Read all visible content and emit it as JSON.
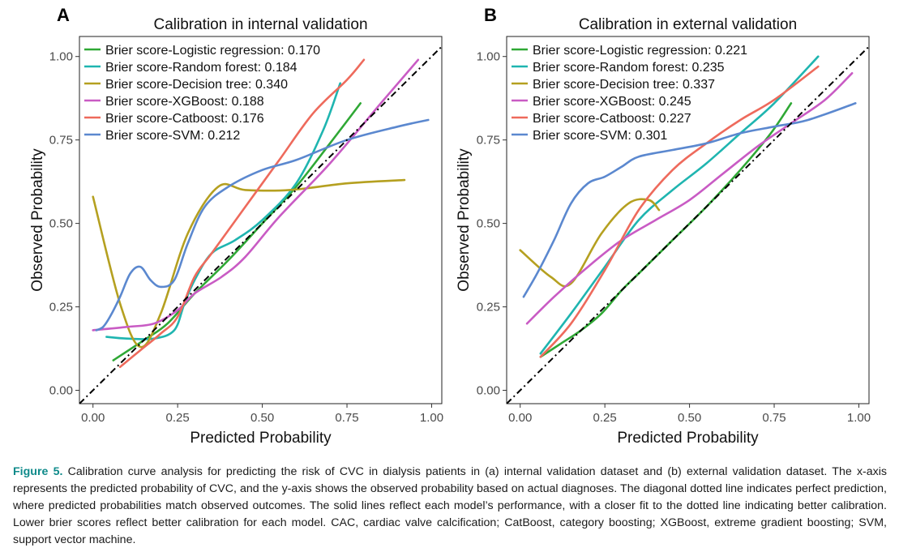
{
  "caption": {
    "label": "Figure 5.",
    "text": "Calibration curve analysis for predicting the risk of CVC in dialysis patients in (a) internal validation dataset and (b) external validation dataset. The x-axis represents the predicted probability of CVC, and the y-axis shows the observed probability based on actual diagnoses. The diagonal dotted line indicates perfect prediction, where predicted probabilities match observed outcomes. The solid lines reflect each model’s performance, with a closer fit to the dotted line indicating better calibration. Lower brier scores reflect better calibration for each model. CAC, cardiac valve calcification; CatBoost, category boosting; XGBoost, extreme gradient boosting; SVM, support vector machine."
  },
  "chart_data": [
    {
      "panel_label": "A",
      "type": "line",
      "title": "Calibration in internal validation",
      "xlabel": "Predicted Probability",
      "ylabel": "Observed Probability",
      "xlim": [
        -0.04,
        1.03
      ],
      "ylim": [
        -0.04,
        1.06
      ],
      "xticks": [
        "0.00",
        "0.25",
        "0.50",
        "0.75",
        "1.00"
      ],
      "yticks": [
        "0.00",
        "0.25",
        "0.50",
        "0.75",
        "1.00"
      ],
      "legend_position": "top-left",
      "reference_line": "diagonal dash-dot",
      "grid": false,
      "series": [
        {
          "name": "Brier score-Logistic regression: 0.170",
          "color": "#2fa835",
          "x": [
            0.06,
            0.15,
            0.22,
            0.3,
            0.4,
            0.5,
            0.6,
            0.7,
            0.79
          ],
          "y": [
            0.09,
            0.15,
            0.2,
            0.29,
            0.39,
            0.5,
            0.61,
            0.74,
            0.86
          ]
        },
        {
          "name": "Brier score-Random forest: 0.184",
          "color": "#1fb5b0",
          "x": [
            0.04,
            0.1,
            0.18,
            0.24,
            0.27,
            0.3,
            0.35,
            0.42,
            0.5,
            0.6,
            0.68,
            0.73
          ],
          "y": [
            0.16,
            0.155,
            0.155,
            0.18,
            0.26,
            0.33,
            0.41,
            0.45,
            0.51,
            0.62,
            0.78,
            0.92
          ]
        },
        {
          "name": "Brier score-Decision tree: 0.340",
          "color": "#b5a020",
          "x": [
            0.0,
            0.08,
            0.14,
            0.2,
            0.28,
            0.37,
            0.45,
            0.58,
            0.75,
            0.92
          ],
          "y": [
            0.58,
            0.26,
            0.13,
            0.23,
            0.47,
            0.61,
            0.6,
            0.6,
            0.62,
            0.63
          ]
        },
        {
          "name": "Brier score-XGBoost: 0.188",
          "color": "#c95bc4",
          "x": [
            0.0,
            0.1,
            0.18,
            0.25,
            0.3,
            0.38,
            0.45,
            0.55,
            0.7,
            0.85,
            0.96
          ],
          "y": [
            0.18,
            0.19,
            0.2,
            0.24,
            0.29,
            0.34,
            0.4,
            0.52,
            0.68,
            0.86,
            0.99
          ]
        },
        {
          "name": "Brier score-Catboost: 0.176",
          "color": "#ee6a5c",
          "x": [
            0.08,
            0.14,
            0.2,
            0.25,
            0.3,
            0.35,
            0.45,
            0.55,
            0.65,
            0.75,
            0.8
          ],
          "y": [
            0.07,
            0.12,
            0.17,
            0.22,
            0.34,
            0.41,
            0.55,
            0.69,
            0.83,
            0.93,
            0.99
          ]
        },
        {
          "name": "Brier score-SVM: 0.212",
          "color": "#5b88cf",
          "x": [
            0.01,
            0.03,
            0.05,
            0.08,
            0.11,
            0.14,
            0.17,
            0.2,
            0.24,
            0.28,
            0.33,
            0.4,
            0.5,
            0.6,
            0.75,
            0.9,
            0.99
          ],
          "y": [
            0.18,
            0.19,
            0.22,
            0.28,
            0.35,
            0.37,
            0.33,
            0.31,
            0.33,
            0.44,
            0.55,
            0.61,
            0.66,
            0.69,
            0.75,
            0.79,
            0.81
          ]
        }
      ]
    },
    {
      "panel_label": "B",
      "type": "line",
      "title": "Calibration in external validation",
      "xlabel": "Predicted Probability",
      "ylabel": "Observed Probability",
      "xlim": [
        -0.04,
        1.03
      ],
      "ylim": [
        -0.04,
        1.06
      ],
      "xticks": [
        "0.00",
        "0.25",
        "0.50",
        "0.75",
        "1.00"
      ],
      "yticks": [
        "0.00",
        "0.25",
        "0.50",
        "0.75",
        "1.00"
      ],
      "legend_position": "top-left",
      "reference_line": "diagonal dash-dot",
      "grid": false,
      "series": [
        {
          "name": "Brier score-Logistic regression: 0.221",
          "color": "#2fa835",
          "x": [
            0.06,
            0.12,
            0.18,
            0.24,
            0.3,
            0.36,
            0.45,
            0.55,
            0.65,
            0.74,
            0.8
          ],
          "y": [
            0.1,
            0.14,
            0.18,
            0.23,
            0.3,
            0.36,
            0.45,
            0.55,
            0.66,
            0.77,
            0.86
          ]
        },
        {
          "name": "Brier score-Random forest: 0.235",
          "color": "#1fb5b0",
          "x": [
            0.06,
            0.15,
            0.25,
            0.35,
            0.45,
            0.55,
            0.65,
            0.75,
            0.88
          ],
          "y": [
            0.11,
            0.23,
            0.37,
            0.51,
            0.6,
            0.68,
            0.77,
            0.86,
            1.0
          ]
        },
        {
          "name": "Brier score-Decision tree: 0.337",
          "color": "#b5a020",
          "x": [
            0.0,
            0.09,
            0.15,
            0.24,
            0.32,
            0.38,
            0.41
          ],
          "y": [
            0.42,
            0.34,
            0.32,
            0.47,
            0.56,
            0.57,
            0.54
          ]
        },
        {
          "name": "Brier score-XGBoost: 0.245",
          "color": "#c95bc4",
          "x": [
            0.02,
            0.1,
            0.2,
            0.3,
            0.4,
            0.5,
            0.6,
            0.7,
            0.8,
            0.9,
            0.98
          ],
          "y": [
            0.2,
            0.28,
            0.37,
            0.45,
            0.51,
            0.57,
            0.65,
            0.73,
            0.8,
            0.87,
            0.95
          ]
        },
        {
          "name": "Brier score-Catboost: 0.227",
          "color": "#ee6a5c",
          "x": [
            0.06,
            0.15,
            0.25,
            0.35,
            0.45,
            0.55,
            0.65,
            0.75,
            0.88
          ],
          "y": [
            0.1,
            0.2,
            0.36,
            0.54,
            0.66,
            0.74,
            0.81,
            0.87,
            0.97
          ]
        },
        {
          "name": "Brier score-SVM: 0.301",
          "color": "#5b88cf",
          "x": [
            0.01,
            0.05,
            0.1,
            0.15,
            0.2,
            0.25,
            0.3,
            0.35,
            0.45,
            0.55,
            0.65,
            0.75,
            0.85,
            0.99
          ],
          "y": [
            0.28,
            0.35,
            0.45,
            0.56,
            0.62,
            0.64,
            0.67,
            0.7,
            0.72,
            0.74,
            0.77,
            0.79,
            0.81,
            0.86
          ]
        }
      ]
    }
  ]
}
